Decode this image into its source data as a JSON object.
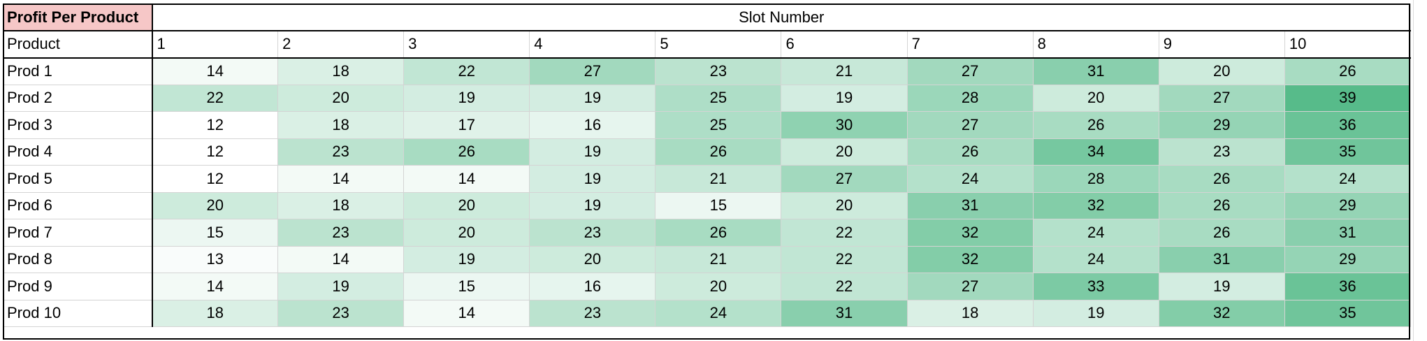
{
  "sheet": {
    "corner_label": "Profit Per Product",
    "slot_title": "Slot Number",
    "row_header_label": "Product",
    "slots": [
      "1",
      "2",
      "3",
      "4",
      "5",
      "6",
      "7",
      "8",
      "9",
      "10"
    ],
    "rows": [
      {
        "product": "Prod 1",
        "values": [
          14,
          18,
          22,
          27,
          23,
          21,
          27,
          31,
          20,
          26
        ]
      },
      {
        "product": "Prod 2",
        "values": [
          22,
          20,
          19,
          19,
          25,
          19,
          28,
          20,
          27,
          39
        ]
      },
      {
        "product": "Prod 3",
        "values": [
          12,
          18,
          17,
          16,
          25,
          30,
          27,
          26,
          29,
          36
        ]
      },
      {
        "product": "Prod 4",
        "values": [
          12,
          23,
          26,
          19,
          26,
          20,
          26,
          34,
          23,
          35
        ]
      },
      {
        "product": "Prod 5",
        "values": [
          12,
          14,
          14,
          19,
          21,
          27,
          24,
          28,
          26,
          24
        ]
      },
      {
        "product": "Prod 6",
        "values": [
          20,
          18,
          20,
          19,
          15,
          20,
          31,
          32,
          26,
          29
        ]
      },
      {
        "product": "Prod 7",
        "values": [
          15,
          23,
          20,
          23,
          26,
          22,
          32,
          24,
          26,
          31
        ]
      },
      {
        "product": "Prod 8",
        "values": [
          13,
          14,
          19,
          20,
          21,
          22,
          32,
          24,
          31,
          29
        ]
      },
      {
        "product": "Prod 9",
        "values": [
          14,
          19,
          15,
          16,
          20,
          22,
          27,
          33,
          19,
          36
        ]
      },
      {
        "product": "Prod 10",
        "values": [
          18,
          23,
          14,
          23,
          24,
          31,
          18,
          19,
          32,
          35
        ]
      }
    ]
  },
  "colors": {
    "corner_fill": "#f6c7c7",
    "scale_low": "#ffffff",
    "scale_high": "#57bb8a",
    "outline": "#000000",
    "gridline": "#d4d4d4"
  }
}
